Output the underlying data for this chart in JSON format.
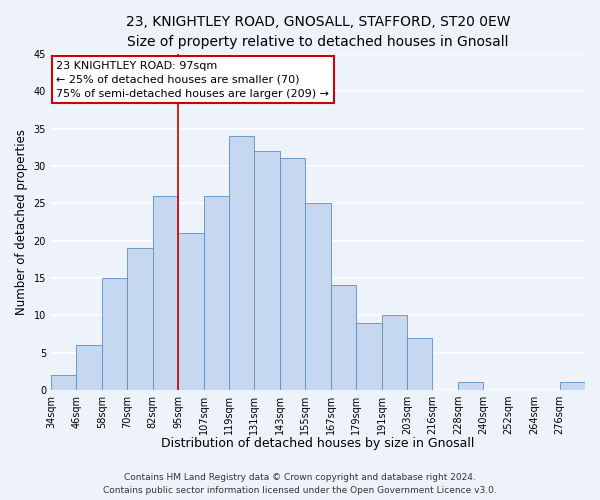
{
  "title_line1": "23, KNIGHTLEY ROAD, GNOSALL, STAFFORD, ST20 0EW",
  "title_line2": "Size of property relative to detached houses in Gnosall",
  "xlabel": "Distribution of detached houses by size in Gnosall",
  "ylabel": "Number of detached properties",
  "bin_labels": [
    "34sqm",
    "46sqm",
    "58sqm",
    "70sqm",
    "82sqm",
    "95sqm",
    "107sqm",
    "119sqm",
    "131sqm",
    "143sqm",
    "155sqm",
    "167sqm",
    "179sqm",
    "191sqm",
    "203sqm",
    "216sqm",
    "228sqm",
    "240sqm",
    "252sqm",
    "264sqm",
    "276sqm"
  ],
  "bar_heights": [
    2,
    6,
    15,
    19,
    26,
    21,
    26,
    34,
    32,
    31,
    25,
    14,
    9,
    10,
    7,
    0,
    1,
    0,
    0,
    0,
    1
  ],
  "bar_color": "#c5d8f0",
  "bar_edge_color": "#5b8ec4",
  "vline_color": "#cc0000",
  "vline_x_index": 5,
  "ylim": [
    0,
    45
  ],
  "yticks": [
    0,
    5,
    10,
    15,
    20,
    25,
    30,
    35,
    40,
    45
  ],
  "annotation_line1": "23 KNIGHTLEY ROAD: 97sqm",
  "annotation_line2": "← 25% of detached houses are smaller (70)",
  "annotation_line3": "75% of semi-detached houses are larger (209) →",
  "annotation_box_facecolor": "white",
  "annotation_box_edgecolor": "#cc0000",
  "footer_line1": "Contains HM Land Registry data © Crown copyright and database right 2024.",
  "footer_line2": "Contains public sector information licensed under the Open Government Licence v3.0.",
  "background_color": "#eef2fa",
  "grid_color": "white",
  "title_fontsize": 10,
  "subtitle_fontsize": 9,
  "tick_fontsize": 7,
  "ylabel_fontsize": 8.5,
  "xlabel_fontsize": 9,
  "annotation_fontsize": 8,
  "footer_fontsize": 6.5
}
